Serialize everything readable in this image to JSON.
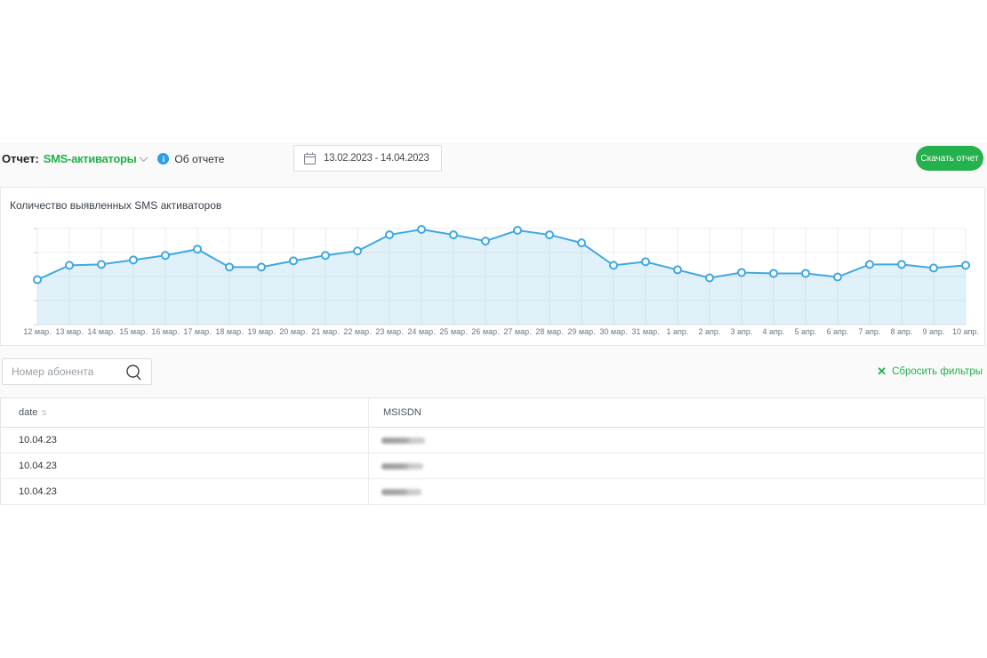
{
  "header": {
    "report_label": "Отчет:",
    "report_name": "SMS-активаторы",
    "about_label": "Об отчете",
    "date_range": "13.02.2023 - 14.04.2023",
    "download_button": "Скачать отчет"
  },
  "filters": {
    "search_placeholder": "Номер абонента",
    "reset_label": "Сбросить фильтры"
  },
  "chart_data": {
    "type": "line",
    "title": "Количество выявленных SMS активаторов",
    "x": [
      "12 мар.",
      "13 мар.",
      "14 мар.",
      "15 мар.",
      "16 мар.",
      "17 мар.",
      "18 мар.",
      "19 мар.",
      "20 мар.",
      "21 мар.",
      "22 мар.",
      "23 мар.",
      "24 мар.",
      "25 мар.",
      "26 мар.",
      "27 мар.",
      "28 мар.",
      "29 мар.",
      "30 мар.",
      "31 мар.",
      "1 апр.",
      "2 апр.",
      "3 апр.",
      "4 апр.",
      "5 апр.",
      "6 апр.",
      "7 апр.",
      "8 апр.",
      "9 апр.",
      "10 апр."
    ],
    "values": [
      50,
      66,
      67,
      72,
      77,
      84,
      64,
      64,
      71,
      77,
      82,
      100,
      106,
      100,
      93,
      105,
      100,
      91,
      66,
      70,
      61,
      52,
      58,
      57,
      57,
      53,
      67,
      67,
      63,
      66
    ],
    "ylim": [
      0,
      107
    ],
    "y_axis_labels_visible": false,
    "grid": true,
    "legend": "none",
    "marker": "open-circle",
    "area_fill": true
  },
  "table": {
    "columns": [
      "date",
      "MSISDN"
    ],
    "rows": [
      {
        "date": "10.04.23",
        "msisdn_blurred": true
      },
      {
        "date": "10.04.23",
        "msisdn_blurred": true
      },
      {
        "date": "10.04.23",
        "msisdn_blurred": true
      }
    ]
  },
  "colors": {
    "accent_green": "#22b14c",
    "button_green": "#25b14e",
    "info_blue": "#2d9ee8",
    "chart_line": "#40a8e2",
    "chart_area": "rgba(64,168,226,0.16)"
  }
}
